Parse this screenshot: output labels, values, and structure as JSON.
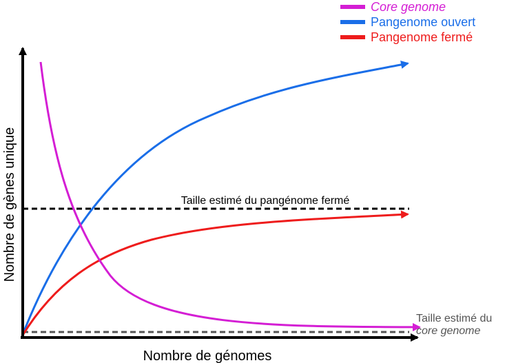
{
  "axes": {
    "xlabel": "Nombre de génomes",
    "ylabel": "Nombre de gènes unique"
  },
  "legend": {
    "items": [
      {
        "label": "Core genome",
        "italic": true,
        "color": "#d41ed4"
      },
      {
        "label": "Pangenome ouvert",
        "italic": false,
        "color": "#1a6ee8"
      },
      {
        "label": "Pangenome fermé",
        "italic": false,
        "color": "#ee1c1c"
      }
    ]
  },
  "annotations": {
    "closed_pangenome_size": "Taille estimé du pangénome fermé",
    "core_size_line1": "Taille estimé du",
    "core_size_line2": "core genome"
  },
  "colors": {
    "core": "#d41ed4",
    "open": "#1a6ee8",
    "closed": "#ee1c1c",
    "axis": "#000000",
    "closed_limit_line": "#000000",
    "core_limit_line": "#555555",
    "core_label": "#555555"
  }
}
